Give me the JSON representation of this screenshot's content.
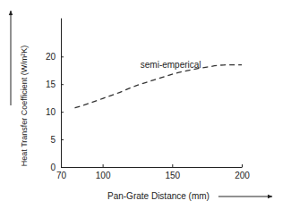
{
  "chart_data": {
    "type": "line",
    "x_label": "Pan-Grate Distance (mm)",
    "y_label": "Heat Transfer Coefficient (W/m²K)",
    "x": [
      80,
      90,
      100,
      110,
      125,
      140,
      150,
      160,
      175,
      190,
      200
    ],
    "series": [
      {
        "name": "semi-emperical",
        "color": "#333333",
        "line_style": "dashed",
        "values": [
          10.7,
          11.5,
          12.4,
          13.3,
          14.8,
          16.0,
          16.8,
          17.4,
          18.1,
          18.5,
          18.5
        ]
      }
    ],
    "xlim": [
      70,
      200
    ],
    "xticks": [
      70,
      100,
      150,
      200
    ],
    "ylim": [
      0,
      27
    ],
    "yticks": [
      0,
      5,
      10,
      15,
      20
    ],
    "grid": false
  }
}
